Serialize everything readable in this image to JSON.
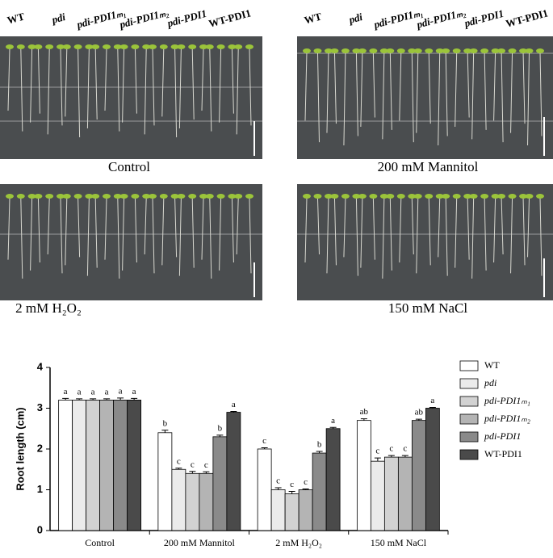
{
  "chart_data": {
    "type": "bar",
    "ylabel": "Root length (cm)",
    "categories": [
      "Control",
      "200 mM Mannitol",
      "2 mM H₂O₂",
      "150 mM NaCl"
    ],
    "series": [
      {
        "name": "WT",
        "color": "#ffffff",
        "values": [
          3.2,
          2.4,
          2.0,
          2.7
        ],
        "errors": [
          0.04,
          0.06,
          0.03,
          0.04
        ],
        "letters": [
          "a",
          "b",
          "c",
          "ab"
        ]
      },
      {
        "name": "pdi",
        "color": "#ebebeb",
        "values": [
          3.2,
          1.5,
          1.0,
          1.7
        ],
        "errors": [
          0.03,
          0.03,
          0.05,
          0.08
        ],
        "letters": [
          "a",
          "c",
          "c",
          "c"
        ]
      },
      {
        "name": "pdi-PDI1ₘ₁",
        "color": "#d2d2d2",
        "values": [
          3.2,
          1.4,
          0.9,
          1.8
        ],
        "errors": [
          0.03,
          0.05,
          0.06,
          0.04
        ],
        "letters": [
          "a",
          "c",
          "c",
          "c"
        ]
      },
      {
        "name": "pdi-PDI1ₘ₂",
        "color": "#b4b4b4",
        "values": [
          3.2,
          1.4,
          1.0,
          1.8
        ],
        "errors": [
          0.03,
          0.04,
          0.02,
          0.04
        ],
        "letters": [
          "a",
          "c",
          "c",
          "c"
        ]
      },
      {
        "name": "pdi-PDI1",
        "color": "#8a8a8a",
        "values": [
          3.2,
          2.3,
          1.9,
          2.7
        ],
        "errors": [
          0.05,
          0.04,
          0.04,
          0.03
        ],
        "letters": [
          "a",
          "b",
          "b",
          "ab"
        ]
      },
      {
        "name": "WT-PDI1",
        "color": "#4a4a4a",
        "values": [
          3.2,
          2.9,
          2.5,
          3.0
        ],
        "errors": [
          0.04,
          0.02,
          0.03,
          0.02
        ],
        "letters": [
          "a",
          "a",
          "a",
          "a"
        ]
      }
    ],
    "ylim": [
      0,
      4
    ],
    "yticks": [
      0,
      1,
      2,
      3,
      4
    ],
    "grid": false,
    "legend": "right"
  }
}
